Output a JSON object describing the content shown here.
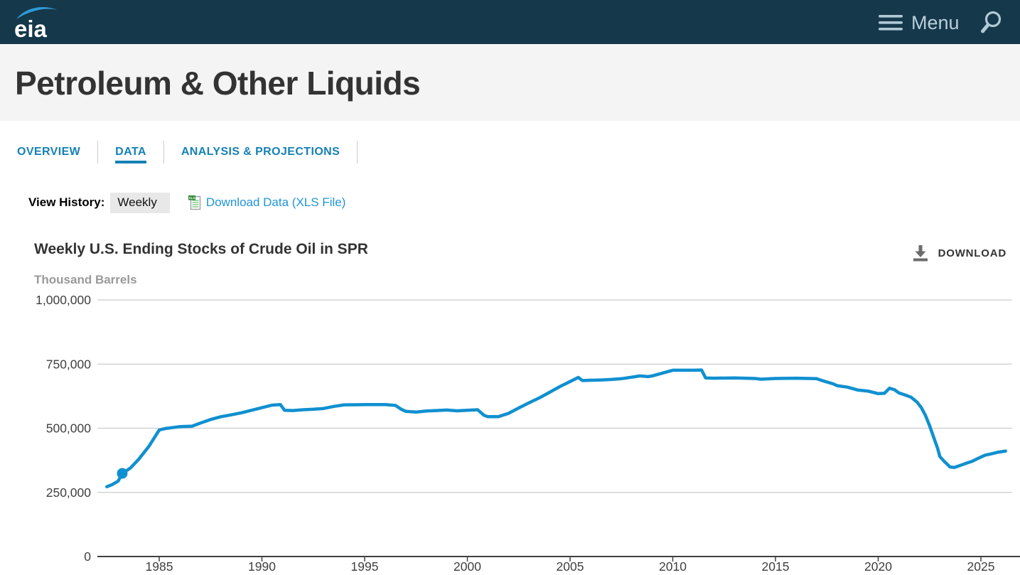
{
  "topbar": {
    "logo_text": "eia",
    "menu_label": "Menu"
  },
  "banner": {
    "title": "Petroleum & Other Liquids"
  },
  "tabs": {
    "items": [
      {
        "label": "OVERVIEW",
        "active": false
      },
      {
        "label": "DATA",
        "active": true
      },
      {
        "label": "ANALYSIS & PROJECTIONS",
        "active": false
      }
    ]
  },
  "controls": {
    "view_history_label": "View History:",
    "view_history_value": "Weekly",
    "download_link_label": "Download Data (XLS File)"
  },
  "chart_header": {
    "title": "Weekly U.S. Ending Stocks of Crude Oil in SPR",
    "download_label": "DOWNLOAD"
  },
  "colors": {
    "topbar_bg": "#15384a",
    "topbar_icon": "#b0c9d6",
    "swoosh_blue": "#2e9bd6",
    "banner_bg": "#f4f4f4",
    "tab_blue": "#1581b5",
    "link_blue": "#1e95d4",
    "line_blue": "#1090d0",
    "grid_gray": "#cccccc",
    "axis_dark": "#404040"
  },
  "chart_data": {
    "type": "line",
    "title": "Weekly U.S. Ending Stocks of Crude Oil in SPR",
    "units_label": "Thousand Barrels",
    "ylabel": "Thousand Barrels",
    "xlabel": "",
    "grid": true,
    "legend": "none",
    "ylim": [
      0,
      1000000
    ],
    "x_range": [
      1982.4,
      2026.3
    ],
    "line_color": "#1090d0",
    "grid_color": "#cccccc",
    "axis_color": "#404040",
    "axis_text_color": "#3f3f3f",
    "y_ticks": [
      {
        "value": 1000000,
        "label": "1,000,000"
      },
      {
        "value": 750000,
        "label": "750,000"
      },
      {
        "value": 500000,
        "label": "500,000"
      },
      {
        "value": 250000,
        "label": "250,000"
      },
      {
        "value": 0,
        "label": "0"
      }
    ],
    "x_ticks": [
      {
        "value": 1985,
        "label": "1985"
      },
      {
        "value": 1990,
        "label": "1990"
      },
      {
        "value": 1995,
        "label": "1995"
      },
      {
        "value": 2000,
        "label": "2000"
      },
      {
        "value": 2005,
        "label": "2005"
      },
      {
        "value": 2010,
        "label": "2010"
      },
      {
        "value": 2015,
        "label": "2015"
      },
      {
        "value": 2020,
        "label": "2020"
      },
      {
        "value": 2025,
        "label": "2025"
      }
    ],
    "marker": {
      "year": 1983.2,
      "value": 324000
    },
    "series": [
      {
        "name": "Weekly U.S. Ending Stocks of Crude Oil in SPR",
        "points": [
          [
            1982.45,
            272000
          ],
          [
            1982.7,
            280000
          ],
          [
            1983.0,
            294000
          ],
          [
            1983.2,
            324000
          ],
          [
            1983.6,
            345000
          ],
          [
            1984.0,
            379000
          ],
          [
            1984.5,
            430000
          ],
          [
            1985.0,
            493000
          ],
          [
            1985.3,
            499000
          ],
          [
            1986.0,
            506000
          ],
          [
            1986.6,
            508000
          ],
          [
            1987.0,
            520000
          ],
          [
            1987.5,
            534000
          ],
          [
            1988.0,
            545000
          ],
          [
            1988.5,
            552000
          ],
          [
            1989.0,
            560000
          ],
          [
            1989.5,
            570000
          ],
          [
            1990.0,
            580000
          ],
          [
            1990.5,
            590000
          ],
          [
            1990.9,
            592000
          ],
          [
            1991.1,
            570000
          ],
          [
            1991.5,
            569000
          ],
          [
            1992.0,
            572000
          ],
          [
            1992.5,
            574000
          ],
          [
            1993.0,
            577000
          ],
          [
            1993.5,
            585000
          ],
          [
            1994.0,
            591000
          ],
          [
            1995.0,
            592000
          ],
          [
            1996.0,
            592000
          ],
          [
            1996.5,
            589000
          ],
          [
            1996.8,
            573000
          ],
          [
            1997.0,
            566000
          ],
          [
            1997.5,
            563000
          ],
          [
            1998.0,
            567000
          ],
          [
            1998.5,
            569000
          ],
          [
            1999.0,
            571000
          ],
          [
            1999.5,
            568000
          ],
          [
            2000.0,
            570000
          ],
          [
            2000.5,
            572000
          ],
          [
            2000.8,
            551000
          ],
          [
            2001.0,
            545000
          ],
          [
            2001.5,
            545000
          ],
          [
            2002.0,
            558000
          ],
          [
            2002.5,
            579000
          ],
          [
            2003.0,
            599000
          ],
          [
            2003.5,
            618000
          ],
          [
            2004.0,
            640000
          ],
          [
            2004.5,
            662000
          ],
          [
            2005.0,
            682000
          ],
          [
            2005.4,
            698000
          ],
          [
            2005.6,
            686000
          ],
          [
            2006.0,
            687000
          ],
          [
            2006.5,
            688000
          ],
          [
            2007.0,
            690000
          ],
          [
            2007.5,
            693000
          ],
          [
            2008.0,
            699000
          ],
          [
            2008.4,
            704000
          ],
          [
            2008.8,
            701000
          ],
          [
            2009.0,
            704000
          ],
          [
            2009.5,
            715000
          ],
          [
            2010.0,
            726000
          ],
          [
            2011.0,
            726000
          ],
          [
            2011.4,
            727000
          ],
          [
            2011.6,
            696000
          ],
          [
            2012.0,
            695000
          ],
          [
            2013.0,
            696000
          ],
          [
            2014.0,
            694000
          ],
          [
            2014.3,
            691000
          ],
          [
            2015.0,
            694000
          ],
          [
            2016.0,
            695000
          ],
          [
            2017.0,
            693000
          ],
          [
            2017.3,
            685000
          ],
          [
            2017.8,
            673000
          ],
          [
            2018.0,
            666000
          ],
          [
            2018.5,
            660000
          ],
          [
            2019.0,
            649000
          ],
          [
            2019.5,
            645000
          ],
          [
            2020.0,
            635000
          ],
          [
            2020.3,
            636000
          ],
          [
            2020.55,
            656000
          ],
          [
            2020.8,
            650000
          ],
          [
            2021.0,
            638000
          ],
          [
            2021.3,
            630000
          ],
          [
            2021.6,
            621000
          ],
          [
            2021.9,
            601000
          ],
          [
            2022.1,
            580000
          ],
          [
            2022.3,
            550000
          ],
          [
            2022.5,
            510000
          ],
          [
            2022.7,
            465000
          ],
          [
            2022.9,
            420000
          ],
          [
            2023.0,
            390000
          ],
          [
            2023.2,
            372000
          ],
          [
            2023.5,
            349000
          ],
          [
            2023.7,
            347000
          ],
          [
            2024.0,
            355000
          ],
          [
            2024.3,
            364000
          ],
          [
            2024.6,
            372000
          ],
          [
            2024.9,
            384000
          ],
          [
            2025.2,
            395000
          ],
          [
            2025.5,
            400000
          ],
          [
            2025.8,
            406000
          ],
          [
            2026.2,
            411000
          ]
        ]
      }
    ]
  }
}
